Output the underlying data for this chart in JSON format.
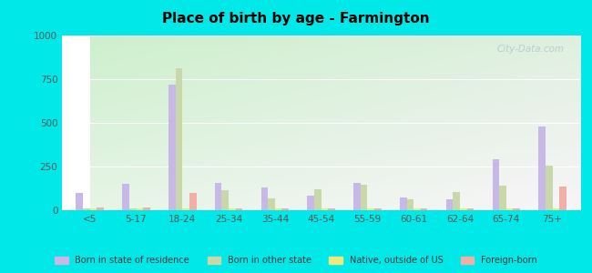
{
  "title": "Place of birth by age - Farmington",
  "categories": [
    "<5",
    "5-17",
    "18-24",
    "25-34",
    "35-44",
    "45-54",
    "55-59",
    "60-61",
    "62-64",
    "65-74",
    "75+"
  ],
  "series": {
    "Born in state of residence": [
      100,
      150,
      720,
      155,
      130,
      85,
      155,
      75,
      65,
      290,
      480
    ],
    "Born in other state": [
      10,
      10,
      810,
      115,
      70,
      120,
      145,
      65,
      105,
      140,
      255
    ],
    "Native, outside of US": [
      8,
      8,
      8,
      12,
      8,
      8,
      8,
      8,
      8,
      10,
      10
    ],
    "Foreign-born": [
      15,
      15,
      100,
      12,
      12,
      12,
      12,
      12,
      12,
      12,
      135
    ]
  },
  "colors": {
    "Born in state of residence": "#c8b8e8",
    "Born in other state": "#c8d8a8",
    "Native, outside of US": "#f0e878",
    "Foreign-born": "#f0b0a8"
  },
  "ylim": [
    0,
    1000
  ],
  "yticks": [
    0,
    250,
    500,
    750,
    1000
  ],
  "outer_bg": "#00e8e8",
  "grid_color": "#e8e8e8",
  "watermark": "City-Data.com"
}
